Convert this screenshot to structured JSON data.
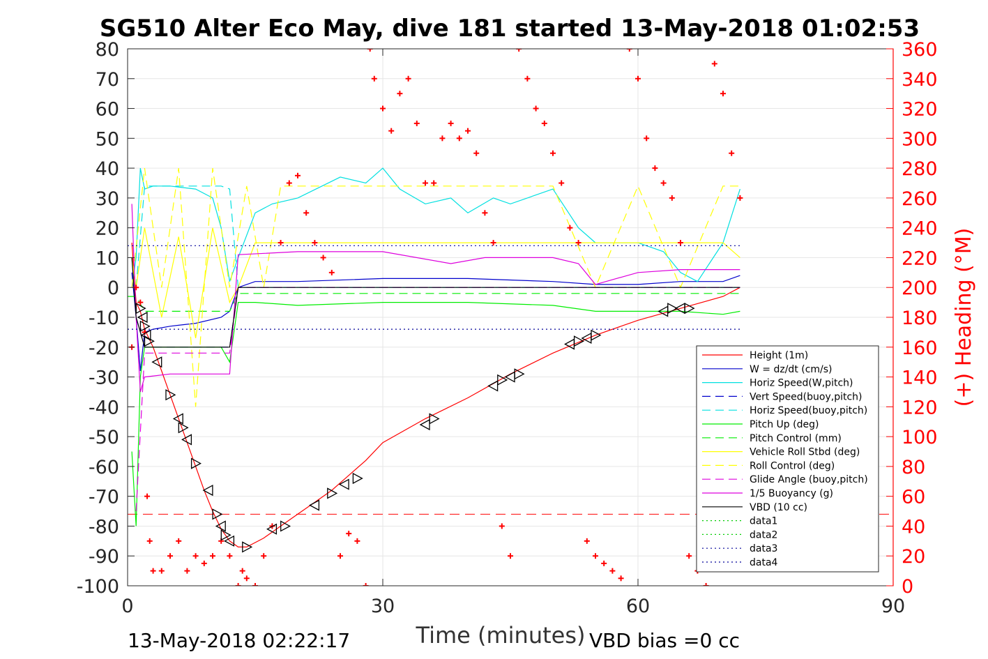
{
  "chart_data": {
    "type": "line",
    "title": "SG510 Alter Eco May, dive 181 started 13-May-2018 01:02:53",
    "xlabel": "Time (minutes)",
    "ylabel_right": "(+) Heading (°M)",
    "xlim": [
      0,
      90
    ],
    "ylim": [
      -100,
      80
    ],
    "ylim_right": [
      0,
      360
    ],
    "xticks": [
      0,
      30,
      60,
      90
    ],
    "yticks": [
      80,
      70,
      60,
      50,
      40,
      30,
      20,
      10,
      0,
      -10,
      -20,
      -30,
      -40,
      -50,
      -60,
      -70,
      -80,
      -90,
      -100
    ],
    "yticks_right": [
      360,
      340,
      320,
      300,
      280,
      260,
      240,
      220,
      200,
      180,
      160,
      140,
      120,
      100,
      80,
      60,
      40,
      20,
      0
    ],
    "grid": true,
    "legend_position": "lower-right",
    "footnote_left": "13-May-2018 02:22:17",
    "footnote_right": "VBD bias =0 cc",
    "series": [
      {
        "name": "Height (1m)",
        "color": "#ff0000",
        "style": "solid",
        "x": [
          0.5,
          1,
          1.5,
          2,
          3,
          4,
          5,
          6,
          7,
          8,
          9,
          10,
          11,
          12,
          13,
          14,
          16,
          18,
          20,
          22,
          24,
          26,
          28,
          30,
          35,
          40,
          45,
          50,
          55,
          60,
          65,
          70,
          72
        ],
        "y": [
          15,
          -5,
          -8,
          -14,
          -20,
          -28,
          -36,
          -44,
          -52,
          -60,
          -68,
          -75,
          -81,
          -85,
          -87,
          -87,
          -84,
          -80,
          -76,
          -72,
          -68,
          -63,
          -58,
          -52,
          -44,
          -37,
          -29,
          -22,
          -16,
          -11,
          -7,
          -3,
          0
        ]
      },
      {
        "name": "W = dz/dt (cm/s)",
        "color": "#0000cc",
        "style": "solid",
        "x": [
          0.5,
          1,
          1.5,
          2,
          3,
          5,
          8,
          11,
          12,
          13,
          15,
          20,
          30,
          40,
          50,
          55,
          60,
          65,
          70,
          72
        ],
        "y": [
          5,
          -10,
          -28,
          -15,
          -14,
          -13,
          -12,
          -10,
          -8,
          0,
          2,
          2,
          3,
          3,
          2,
          1,
          1,
          2,
          2,
          4
        ]
      },
      {
        "name": "Horiz Speed(W,pitch)",
        "color": "#00e0e0",
        "style": "solid",
        "x": [
          0.5,
          1,
          1.5,
          2,
          3,
          5,
          8,
          10,
          11,
          12,
          13,
          15,
          17,
          20,
          25,
          28,
          30,
          32,
          35,
          38,
          40,
          43,
          45,
          50,
          53,
          55,
          60,
          63,
          65,
          67,
          70,
          72
        ],
        "y": [
          0,
          10,
          40,
          33,
          34,
          34,
          33,
          30,
          20,
          2,
          10,
          25,
          28,
          30,
          37,
          35,
          40,
          33,
          28,
          30,
          25,
          30,
          28,
          33,
          20,
          15,
          15,
          12,
          5,
          2,
          15,
          33
        ]
      },
      {
        "name": "Vert Speed(buoy,pitch)",
        "color": "#0000cc",
        "style": "dashed",
        "x": [
          1,
          2,
          11,
          12,
          13,
          72
        ],
        "y": [
          -10,
          -20,
          -20,
          -20,
          0,
          0
        ]
      },
      {
        "name": "Horiz Speed(buoy,pitch)",
        "color": "#00e0e0",
        "style": "dashed",
        "x": [
          1,
          2,
          11,
          12,
          13,
          72
        ],
        "y": [
          0,
          34,
          34,
          33,
          0,
          0
        ]
      },
      {
        "name": "Pitch Up (deg)",
        "color": "#00ee00",
        "style": "solid",
        "x": [
          0.5,
          1,
          1.5,
          2,
          3,
          5,
          8,
          11,
          12,
          13,
          15,
          20,
          30,
          40,
          50,
          55,
          60,
          65,
          70,
          72
        ],
        "y": [
          -55,
          -80,
          -30,
          -20,
          -20,
          -20,
          -20,
          -20,
          -25,
          -5,
          -5,
          -6,
          -5,
          -5,
          -6,
          -8,
          -8,
          -8,
          -9,
          -8
        ]
      },
      {
        "name": "Pitch Control (mm)",
        "color": "#00ee00",
        "style": "dashed",
        "x": [
          0,
          1,
          2,
          11,
          12,
          13,
          72
        ],
        "y": [
          -3,
          -3,
          -8,
          -8,
          -8,
          -2,
          -2
        ]
      },
      {
        "name": "Vehicle Roll Stbd (deg)",
        "color": "#ffff00",
        "style": "solid",
        "x": [
          0.5,
          1,
          2,
          4,
          6,
          8,
          10,
          12,
          13,
          15,
          20,
          30,
          40,
          50,
          55,
          60,
          65,
          70,
          72
        ],
        "y": [
          10,
          0,
          20,
          -10,
          17,
          -17,
          20,
          -5,
          0,
          15,
          15,
          15,
          15,
          15,
          15,
          15,
          15,
          15,
          10
        ]
      },
      {
        "name": "Roll Control (deg)",
        "color": "#ffff00",
        "style": "dashed",
        "x": [
          0.5,
          2,
          4,
          6,
          8,
          10,
          12,
          14,
          16,
          18,
          20,
          30,
          40,
          50,
          55,
          60,
          65,
          70,
          72
        ],
        "y": [
          0,
          40,
          0,
          40,
          -40,
          40,
          0,
          34,
          0,
          34,
          34,
          34,
          34,
          34,
          0,
          34,
          0,
          34,
          34
        ]
      },
      {
        "name": "Glide Angle (buoy,pitch)",
        "color": "#dd00dd",
        "style": "dashed",
        "x": [
          1,
          2,
          11,
          12,
          13,
          72
        ],
        "y": [
          -75,
          -22,
          -22,
          -22,
          0,
          0
        ]
      },
      {
        "name": "1/5 Buoyancy (g)",
        "color": "#dd00dd",
        "style": "solid",
        "x": [
          0.5,
          1,
          1.5,
          2,
          5,
          8,
          11,
          12,
          13,
          20,
          30,
          38,
          42,
          45,
          50,
          53,
          55,
          60,
          65,
          72
        ],
        "y": [
          28,
          -10,
          -35,
          -30,
          -29,
          -29,
          -29,
          -29,
          11,
          12,
          12,
          8,
          10,
          10,
          10,
          8,
          1,
          5,
          6,
          6
        ]
      },
      {
        "name": "VBD (10 cc)",
        "color": "#000000",
        "style": "solid",
        "x": [
          0.5,
          1,
          2,
          11,
          12,
          13,
          72
        ],
        "y": [
          10,
          -10,
          -20,
          -20,
          -20,
          0,
          0
        ]
      },
      {
        "name": "data1",
        "color": "#00cc00",
        "style": "dotted",
        "x": [],
        "y": []
      },
      {
        "name": "data2",
        "color": "#00cc00",
        "style": "dotted",
        "x": [],
        "y": []
      },
      {
        "name": "data3",
        "color": "#000099",
        "style": "dotted",
        "x": [
          0,
          72
        ],
        "y": [
          14,
          14
        ]
      },
      {
        "name": "data4",
        "color": "#000099",
        "style": "dotted",
        "x": [
          0,
          72
        ],
        "y": [
          -14,
          -14
        ]
      }
    ],
    "ref_line": {
      "color": "#ff0000",
      "style": "dashed",
      "y": -76
    },
    "heading_points": {
      "marker": "+",
      "color": "#ff0000",
      "axis": "right",
      "x": [
        0.5,
        1,
        1.5,
        2,
        2.3,
        2.6,
        3,
        4,
        5,
        6,
        7,
        8,
        9,
        10,
        11,
        12,
        13,
        13.5,
        14,
        15,
        16,
        17,
        18,
        19,
        20,
        21,
        22,
        23,
        24,
        25,
        26,
        27,
        28,
        28.5,
        29,
        30,
        31,
        32,
        33,
        34,
        35,
        36,
        37,
        38,
        39,
        40,
        41,
        42,
        43,
        44,
        45,
        46,
        47,
        48,
        49,
        50,
        51,
        52,
        53,
        54,
        55,
        56,
        57,
        58,
        59,
        60,
        61,
        62,
        63,
        64,
        65,
        66,
        67,
        68,
        69,
        70,
        71,
        72
      ],
      "y": [
        160,
        200,
        190,
        170,
        60,
        30,
        10,
        10,
        20,
        30,
        10,
        20,
        15,
        20,
        30,
        20,
        0,
        10,
        5,
        0,
        20,
        40,
        230,
        270,
        275,
        250,
        230,
        220,
        210,
        20,
        35,
        30,
        0,
        360,
        340,
        320,
        305,
        330,
        340,
        310,
        270,
        270,
        300,
        310,
        300,
        305,
        290,
        250,
        230,
        40,
        20,
        360,
        340,
        320,
        310,
        290,
        270,
        240,
        230,
        30,
        20,
        15,
        10,
        5,
        360,
        340,
        300,
        280,
        270,
        260,
        230,
        20,
        10,
        0,
        350,
        330,
        290,
        260
      ]
    },
    "markers": {
      "symbol": "triangle",
      "color": "#000000",
      "x": [
        1.5,
        1.8,
        2,
        2.2,
        2.5,
        3.5,
        5,
        6,
        6.5,
        7,
        8,
        9.5,
        10.5,
        11,
        11.5,
        12,
        14,
        17,
        18.5,
        22,
        24,
        25.5,
        27,
        35,
        36,
        43,
        44,
        45,
        46,
        52,
        53,
        54,
        55,
        63,
        64,
        65,
        66
      ],
      "y": [
        -7,
        -10,
        -13,
        -16,
        -18,
        -25,
        -36,
        -44,
        -47,
        -51,
        -59,
        -68,
        -76,
        -80,
        -83,
        -85,
        -87,
        -81,
        -80,
        -73,
        -69,
        -66,
        -64,
        -46,
        -44,
        -33,
        -31,
        -30,
        -29,
        -19,
        -18,
        -17,
        -16,
        -8,
        -7,
        -7,
        -7
      ]
    }
  }
}
